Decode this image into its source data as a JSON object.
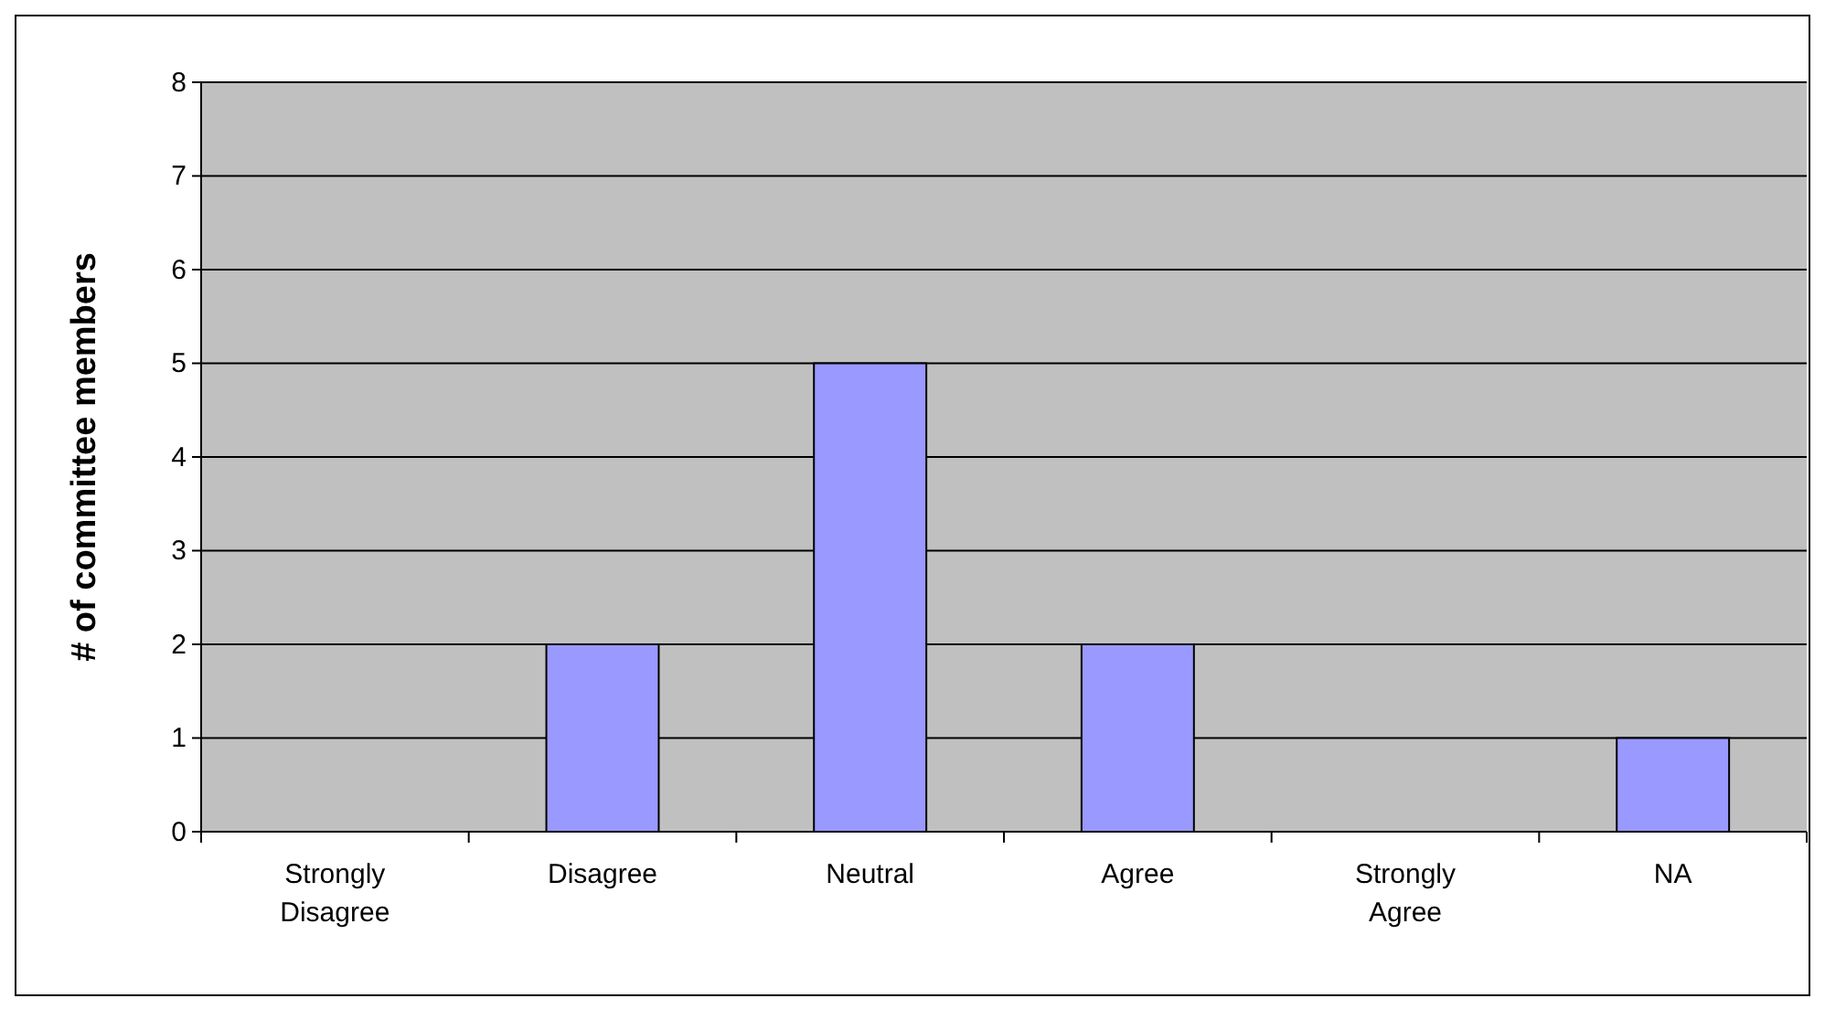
{
  "chart_data": {
    "type": "bar",
    "ylabel": "# of committee members",
    "categories": [
      "Strongly Disagree",
      "Disagree",
      "Neutral",
      "Agree",
      "Strongly Agree",
      "NA"
    ],
    "values": [
      0,
      2,
      5,
      2,
      0,
      1
    ],
    "color": "#9999ff",
    "ylim": [
      0,
      8
    ],
    "yticks": [
      0,
      1,
      2,
      3,
      4,
      5,
      6,
      7,
      8
    ],
    "grid": "y"
  }
}
